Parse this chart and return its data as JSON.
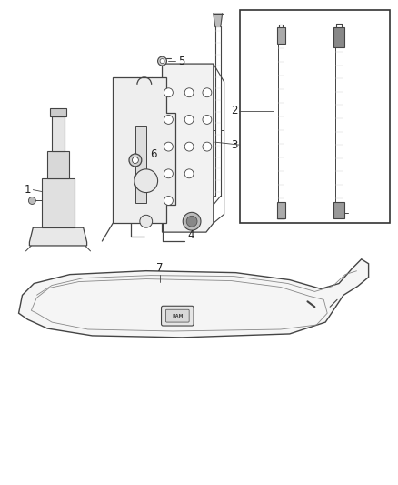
{
  "background_color": "#ffffff",
  "fig_width": 4.38,
  "fig_height": 5.33,
  "dpi": 100,
  "line_color": "#444444",
  "label_color": "#222222",
  "label_fontsize": 8.5
}
